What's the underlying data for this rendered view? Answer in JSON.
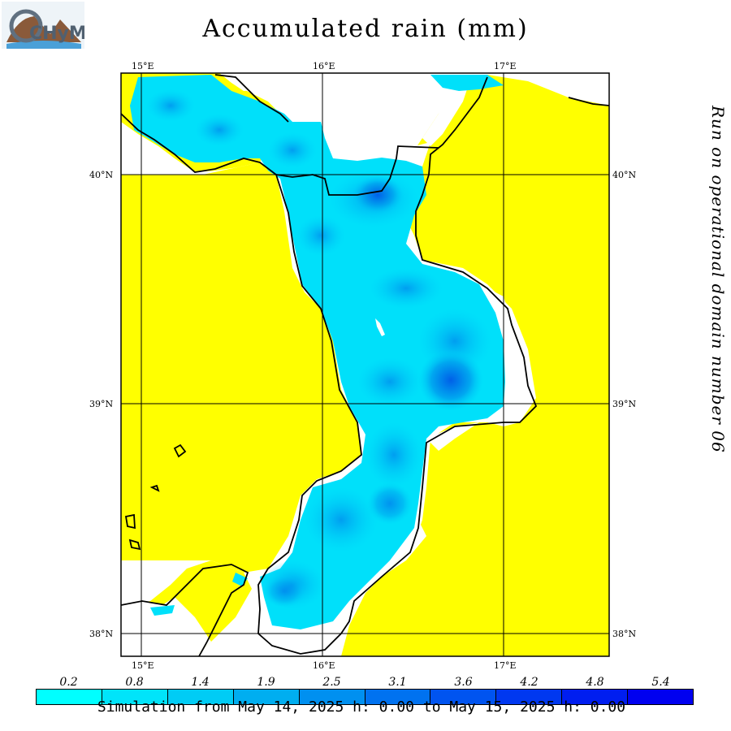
{
  "title": "Accumulated rain (mm)",
  "side_note": "Run on operational domain number 06",
  "footer": "Simulation from May 14, 2025 h: 0.00 to May 15, 2025 h: 0.00",
  "logo": {
    "text": "CHyM"
  },
  "grid": {
    "lon_labels": [
      "15°E",
      "16°E",
      "17°E"
    ],
    "lat_labels": [
      "40°N",
      "39°N",
      "38°N"
    ]
  },
  "colors": {
    "land_dry": "#ffff00",
    "sea": "#ffffff",
    "rain_light": "#00e5ff"
  },
  "colorbar": {
    "labels": [
      "0.2",
      "0.8",
      "1.4",
      "1.9",
      "2.5",
      "3.1",
      "3.6",
      "4.2",
      "4.8",
      "5.4"
    ],
    "colors": [
      "#00ffff",
      "#00e4fa",
      "#00ccf5",
      "#00aef0",
      "#0090f0",
      "#0072f0",
      "#0054f0",
      "#0038f0",
      "#001ef0",
      "#0000f0"
    ]
  }
}
